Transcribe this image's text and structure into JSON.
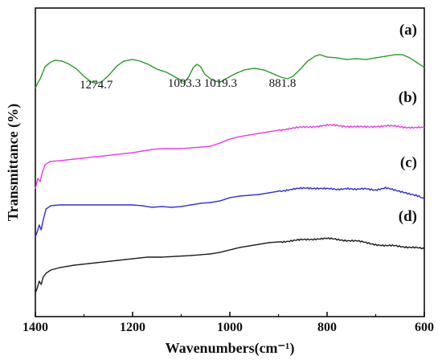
{
  "chart_data": {
    "type": "line",
    "title": "",
    "xlabel": "Wavenumbers(cm⁻¹)",
    "ylabel": "Transmittance (%)",
    "xlim": [
      1400,
      600
    ],
    "x_reversed": true,
    "y_ticks_shown": false,
    "grid": false,
    "x_ticks": [
      {
        "value": 1400,
        "label": "1400"
      },
      {
        "value": 1200,
        "label": "1200"
      },
      {
        "value": 1000,
        "label": "1000"
      },
      {
        "value": 800,
        "label": "800"
      },
      {
        "value": 600,
        "label": "600"
      }
    ],
    "series": [
      {
        "name": "(a)",
        "color": "#2e9a2e",
        "points": [
          [
            1400,
            100
          ],
          [
            1396,
            94
          ],
          [
            1390,
            88
          ],
          [
            1380,
            73
          ],
          [
            1370,
            68
          ],
          [
            1360,
            65
          ],
          [
            1345,
            66
          ],
          [
            1330,
            70
          ],
          [
            1315,
            76
          ],
          [
            1300,
            85
          ],
          [
            1285,
            92
          ],
          [
            1274.7,
            94
          ],
          [
            1262,
            91
          ],
          [
            1248,
            83
          ],
          [
            1232,
            72
          ],
          [
            1218,
            66
          ],
          [
            1200,
            64
          ],
          [
            1185,
            66
          ],
          [
            1168,
            70
          ],
          [
            1150,
            76
          ],
          [
            1130,
            80
          ],
          [
            1115,
            85
          ],
          [
            1100,
            90
          ],
          [
            1093.3,
            92
          ],
          [
            1085,
            86
          ],
          [
            1075,
            74
          ],
          [
            1068,
            70
          ],
          [
            1060,
            73
          ],
          [
            1052,
            82
          ],
          [
            1040,
            88
          ],
          [
            1030,
            91
          ],
          [
            1019.3,
            92
          ],
          [
            1005,
            87
          ],
          [
            990,
            82
          ],
          [
            970,
            77
          ],
          [
            950,
            75
          ],
          [
            930,
            77
          ],
          [
            910,
            82
          ],
          [
            895,
            86
          ],
          [
            881.8,
            88
          ],
          [
            870,
            85
          ],
          [
            855,
            76
          ],
          [
            840,
            66
          ],
          [
            825,
            60
          ],
          [
            815,
            58
          ],
          [
            800,
            61
          ],
          [
            780,
            62
          ],
          [
            760,
            64
          ],
          [
            740,
            63
          ],
          [
            720,
            64
          ],
          [
            700,
            62
          ],
          [
            680,
            60
          ],
          [
            660,
            58
          ],
          [
            645,
            58
          ],
          [
            630,
            62
          ],
          [
            615,
            68
          ],
          [
            600,
            74
          ]
        ]
      },
      {
        "name": "(b)",
        "color": "#e83ae8",
        "points": [
          [
            1400,
            225
          ],
          [
            1395,
            212
          ],
          [
            1390,
            216
          ],
          [
            1386,
            205
          ],
          [
            1380,
            195
          ],
          [
            1370,
            191
          ],
          [
            1350,
            190
          ],
          [
            1320,
            188
          ],
          [
            1290,
            186
          ],
          [
            1260,
            184
          ],
          [
            1230,
            182
          ],
          [
            1200,
            180
          ],
          [
            1180,
            178
          ],
          [
            1160,
            176
          ],
          [
            1140,
            175
          ],
          [
            1120,
            175
          ],
          [
            1100,
            175
          ],
          [
            1080,
            174
          ],
          [
            1060,
            173
          ],
          [
            1040,
            172
          ],
          [
            1020,
            168
          ],
          [
            1000,
            163
          ],
          [
            980,
            160
          ],
          [
            960,
            158
          ],
          [
            940,
            156
          ],
          [
            920,
            154
          ],
          [
            900,
            152
          ],
          [
            880,
            150
          ],
          [
            860,
            149
          ],
          [
            840,
            148
          ],
          [
            820,
            147
          ],
          [
            800,
            146
          ],
          [
            780,
            146
          ],
          [
            760,
            147
          ],
          [
            740,
            148
          ],
          [
            720,
            148
          ],
          [
            700,
            147
          ],
          [
            680,
            147
          ],
          [
            660,
            147
          ],
          [
            640,
            148
          ],
          [
            620,
            149
          ],
          [
            600,
            149
          ]
        ]
      },
      {
        "name": "(c)",
        "color": "#2b2be0",
        "points": [
          [
            1400,
            285
          ],
          [
            1396,
            278
          ],
          [
            1392,
            270
          ],
          [
            1388,
            276
          ],
          [
            1384,
            264
          ],
          [
            1378,
            250
          ],
          [
            1368,
            246
          ],
          [
            1350,
            245
          ],
          [
            1320,
            245
          ],
          [
            1290,
            245
          ],
          [
            1260,
            245
          ],
          [
            1230,
            245
          ],
          [
            1200,
            245
          ],
          [
            1180,
            246
          ],
          [
            1160,
            248
          ],
          [
            1140,
            247
          ],
          [
            1120,
            248
          ],
          [
            1100,
            247
          ],
          [
            1080,
            245
          ],
          [
            1060,
            243
          ],
          [
            1040,
            242
          ],
          [
            1020,
            240
          ],
          [
            1000,
            236
          ],
          [
            980,
            234
          ],
          [
            960,
            233
          ],
          [
            940,
            232
          ],
          [
            920,
            230
          ],
          [
            900,
            228
          ],
          [
            880,
            226
          ],
          [
            860,
            225
          ],
          [
            840,
            224
          ],
          [
            820,
            224
          ],
          [
            800,
            225
          ],
          [
            780,
            226
          ],
          [
            760,
            224
          ],
          [
            740,
            226
          ],
          [
            720,
            225
          ],
          [
            700,
            226
          ],
          [
            680,
            224
          ],
          [
            660,
            227
          ],
          [
            640,
            229
          ],
          [
            620,
            233
          ],
          [
            605,
            236
          ],
          [
            600,
            238
          ]
        ]
      },
      {
        "name": "(d)",
        "color": "#1a1a1a",
        "points": [
          [
            1400,
            355
          ],
          [
            1396,
            348
          ],
          [
            1392,
            340
          ],
          [
            1388,
            344
          ],
          [
            1384,
            335
          ],
          [
            1378,
            330
          ],
          [
            1368,
            326
          ],
          [
            1350,
            323
          ],
          [
            1320,
            320
          ],
          [
            1290,
            318
          ],
          [
            1260,
            316
          ],
          [
            1230,
            314
          ],
          [
            1200,
            312
          ],
          [
            1170,
            310
          ],
          [
            1140,
            310
          ],
          [
            1110,
            309
          ],
          [
            1080,
            308
          ],
          [
            1060,
            307
          ],
          [
            1040,
            306
          ],
          [
            1020,
            304
          ],
          [
            1000,
            301
          ],
          [
            980,
            298
          ],
          [
            960,
            296
          ],
          [
            940,
            294
          ],
          [
            920,
            292
          ],
          [
            900,
            291
          ],
          [
            880,
            290
          ],
          [
            860,
            289
          ],
          [
            840,
            288
          ],
          [
            820,
            287
          ],
          [
            800,
            287
          ],
          [
            780,
            288
          ],
          [
            760,
            289
          ],
          [
            740,
            290
          ],
          [
            720,
            292
          ],
          [
            700,
            294
          ],
          [
            680,
            296
          ],
          [
            660,
            296
          ],
          [
            640,
            297
          ],
          [
            620,
            298
          ],
          [
            600,
            300
          ]
        ]
      }
    ],
    "annotations": [
      {
        "text": "1274.7",
        "x": 1274.7
      },
      {
        "text": "1093.3",
        "x": 1093.3
      },
      {
        "text": "1019.3",
        "x": 1019.3
      },
      {
        "text": "881.8",
        "x": 881.8
      }
    ]
  }
}
